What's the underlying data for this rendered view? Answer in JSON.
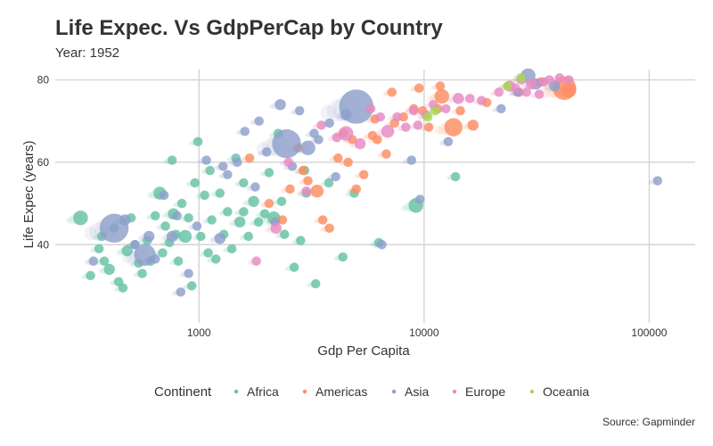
{
  "chart_data": {
    "type": "scatter",
    "title": "Life Expec. Vs GdpPerCap by Country",
    "subtitle": "Year: 1952",
    "xlabel": "Gdp Per Capita",
    "ylabel": "Life Expec (years)",
    "caption": "Source: Gapminder",
    "x_scale": "log10",
    "xlim": [
      230,
      160000
    ],
    "ylim": [
      21,
      82.5
    ],
    "x_ticks": [
      1000,
      10000,
      100000
    ],
    "x_tick_labels": [
      "1000",
      "10000",
      "100000"
    ],
    "y_ticks": [
      40,
      60,
      80
    ],
    "y_tick_labels": [
      "40",
      "60",
      "80"
    ],
    "grid": true,
    "legend": {
      "title": "Continent",
      "position": "bottom"
    },
    "series": [
      {
        "name": "Africa",
        "color": "#66c2a5",
        "points": [
          [
            298,
            46.5,
            8
          ],
          [
            330,
            32.5,
            5
          ],
          [
            360,
            39,
            5
          ],
          [
            370,
            42,
            5
          ],
          [
            380,
            36,
            5
          ],
          [
            400,
            34,
            6
          ],
          [
            420,
            44,
            5
          ],
          [
            440,
            31,
            5
          ],
          [
            460,
            29.5,
            5
          ],
          [
            480,
            38.5,
            6
          ],
          [
            500,
            46.5,
            5
          ],
          [
            520,
            40,
            5
          ],
          [
            540,
            35.5,
            5
          ],
          [
            560,
            33,
            5
          ],
          [
            590,
            41,
            5
          ],
          [
            610,
            36,
            5
          ],
          [
            640,
            47,
            5
          ],
          [
            670,
            52.5,
            7
          ],
          [
            690,
            38,
            5
          ],
          [
            710,
            44.5,
            5
          ],
          [
            740,
            40.5,
            5
          ],
          [
            770,
            47.5,
            6
          ],
          [
            790,
            42.5,
            5
          ],
          [
            810,
            36,
            5
          ],
          [
            840,
            50,
            5
          ],
          [
            870,
            42,
            7
          ],
          [
            900,
            46.5,
            5
          ],
          [
            930,
            30,
            5
          ],
          [
            960,
            55,
            5
          ],
          [
            990,
            65,
            5
          ],
          [
            1020,
            42,
            5
          ],
          [
            1060,
            52,
            5
          ],
          [
            1100,
            38,
            5
          ],
          [
            1140,
            46,
            5
          ],
          [
            1190,
            36.5,
            5
          ],
          [
            1240,
            52.5,
            5
          ],
          [
            1290,
            42.5,
            5
          ],
          [
            1340,
            48,
            5
          ],
          [
            1400,
            39,
            5
          ],
          [
            1460,
            61,
            5
          ],
          [
            1520,
            45.5,
            6
          ],
          [
            1580,
            55,
            5
          ],
          [
            1660,
            42,
            5
          ],
          [
            1750,
            50.5,
            6
          ],
          [
            1840,
            45.5,
            5
          ],
          [
            1960,
            47.5,
            5
          ],
          [
            2050,
            57.5,
            5
          ],
          [
            2150,
            46.5,
            7
          ],
          [
            2330,
            50.5,
            5
          ],
          [
            2400,
            42.5,
            5
          ],
          [
            2650,
            34.5,
            5
          ],
          [
            2830,
            41,
            5
          ],
          [
            3000,
            52.5,
            5
          ],
          [
            3300,
            30.5,
            5
          ],
          [
            3780,
            55,
            5
          ],
          [
            4360,
            37,
            5
          ],
          [
            4900,
            52.5,
            5
          ],
          [
            6300,
            40.5,
            5
          ],
          [
            9200,
            49.5,
            8
          ],
          [
            13800,
            56.5,
            5
          ],
          [
            2950,
            58,
            5
          ],
          [
            1580,
            48,
            5
          ],
          [
            1120,
            58,
            5
          ],
          [
            760,
            60.5,
            5
          ],
          [
            2250,
            67,
            5
          ]
        ]
      },
      {
        "name": "Americas",
        "color": "#fc8d62",
        "points": [
          [
            1680,
            61,
            5
          ],
          [
            2050,
            50,
            5
          ],
          [
            2350,
            46,
            5
          ],
          [
            2540,
            53.5,
            5
          ],
          [
            2900,
            58,
            5
          ],
          [
            3050,
            55.5,
            5
          ],
          [
            3350,
            53,
            7
          ],
          [
            3550,
            46,
            5
          ],
          [
            3800,
            44,
            5
          ],
          [
            4150,
            61,
            5
          ],
          [
            4600,
            60,
            5
          ],
          [
            5000,
            53.5,
            5
          ],
          [
            5400,
            57,
            5
          ],
          [
            5900,
            66.5,
            5
          ],
          [
            6200,
            65.5,
            5
          ],
          [
            6800,
            62,
            5
          ],
          [
            7400,
            69.5,
            5
          ],
          [
            8100,
            71,
            5
          ],
          [
            9000,
            73,
            5
          ],
          [
            9850,
            72.5,
            5
          ],
          [
            10500,
            68.5,
            5
          ],
          [
            11500,
            73,
            5
          ],
          [
            12000,
            76,
            8
          ],
          [
            13500,
            68.5,
            10
          ],
          [
            14500,
            72.5,
            5
          ],
          [
            16500,
            69,
            6
          ],
          [
            19000,
            74.5,
            5
          ],
          [
            26500,
            77,
            5
          ],
          [
            33000,
            79.5,
            5
          ],
          [
            42000,
            78,
            13
          ],
          [
            44000,
            77.5,
            8
          ],
          [
            4400,
            67,
            5
          ],
          [
            6050,
            70.5,
            5
          ],
          [
            9500,
            78,
            5
          ],
          [
            11800,
            78.5,
            5
          ],
          [
            7200,
            77,
            5
          ],
          [
            4800,
            65.5,
            5
          ],
          [
            2760,
            63.5,
            5
          ]
        ]
      },
      {
        "name": "Asia",
        "color": "#8da0cb",
        "points": [
          [
            340,
            36,
            5
          ],
          [
            420,
            44,
            16
          ],
          [
            470,
            46,
            6
          ],
          [
            520,
            40,
            5
          ],
          [
            575,
            37.5,
            12
          ],
          [
            600,
            42,
            6
          ],
          [
            640,
            36.5,
            5
          ],
          [
            700,
            52,
            5
          ],
          [
            760,
            42,
            6
          ],
          [
            800,
            47,
            5
          ],
          [
            830,
            28.5,
            5
          ],
          [
            900,
            33,
            5
          ],
          [
            980,
            44.5,
            5
          ],
          [
            1080,
            60.5,
            5
          ],
          [
            1240,
            41.5,
            6
          ],
          [
            1340,
            57,
            5
          ],
          [
            1480,
            60,
            5
          ],
          [
            1600,
            67.5,
            5
          ],
          [
            1780,
            54,
            5
          ],
          [
            2000,
            62.5,
            5
          ],
          [
            2300,
            74,
            6
          ],
          [
            2450,
            64.5,
            16
          ],
          [
            2600,
            59,
            5
          ],
          [
            2800,
            72.5,
            5
          ],
          [
            3050,
            63.5,
            8
          ],
          [
            3400,
            65.5,
            5
          ],
          [
            3800,
            69.5,
            5
          ],
          [
            4050,
            56.5,
            5
          ],
          [
            4500,
            71.5,
            6
          ],
          [
            5000,
            73.5,
            19
          ],
          [
            6500,
            40,
            5
          ],
          [
            8800,
            60.5,
            5
          ],
          [
            9600,
            51,
            5
          ],
          [
            12800,
            65,
            5
          ],
          [
            22000,
            73,
            5
          ],
          [
            26000,
            77,
            5
          ],
          [
            29000,
            81,
            8
          ],
          [
            31500,
            79,
            6
          ],
          [
            38000,
            78.5,
            6
          ],
          [
            109000,
            55.5,
            5
          ],
          [
            1280,
            59,
            5
          ],
          [
            2180,
            45.5,
            5
          ],
          [
            3250,
            67,
            5
          ],
          [
            1850,
            70,
            5
          ]
        ]
      },
      {
        "name": "Europe",
        "color": "#e78ac3",
        "points": [
          [
            1800,
            36,
            5
          ],
          [
            2200,
            44,
            6
          ],
          [
            2500,
            60,
            5
          ],
          [
            3000,
            53,
            5
          ],
          [
            3500,
            69,
            5
          ],
          [
            4100,
            66,
            5
          ],
          [
            4500,
            67,
            8
          ],
          [
            5200,
            64.5,
            6
          ],
          [
            5800,
            73,
            5
          ],
          [
            6400,
            71,
            5
          ],
          [
            6900,
            67.5,
            7
          ],
          [
            7600,
            71,
            5
          ],
          [
            8300,
            68.5,
            5
          ],
          [
            9000,
            72.5,
            5
          ],
          [
            9400,
            69,
            5
          ],
          [
            10200,
            71.5,
            5
          ],
          [
            11000,
            74,
            5
          ],
          [
            12500,
            73,
            5
          ],
          [
            14200,
            75.5,
            6
          ],
          [
            16000,
            75.5,
            5
          ],
          [
            18000,
            75,
            5
          ],
          [
            21500,
            77,
            5
          ],
          [
            24000,
            78.5,
            6
          ],
          [
            25500,
            78,
            5
          ],
          [
            27000,
            80,
            5
          ],
          [
            28500,
            77,
            5
          ],
          [
            30000,
            79,
            6
          ],
          [
            32500,
            76.5,
            5
          ],
          [
            34000,
            79.5,
            5
          ],
          [
            36000,
            80,
            5
          ],
          [
            40000,
            80.5,
            5
          ],
          [
            44000,
            80,
            5
          ]
        ]
      },
      {
        "name": "Oceania",
        "color": "#a6d854",
        "points": [
          [
            10400,
            71,
            5
          ],
          [
            11200,
            72.5,
            5
          ],
          [
            23500,
            78.5,
            5
          ],
          [
            27000,
            80.5,
            5
          ]
        ]
      }
    ]
  }
}
